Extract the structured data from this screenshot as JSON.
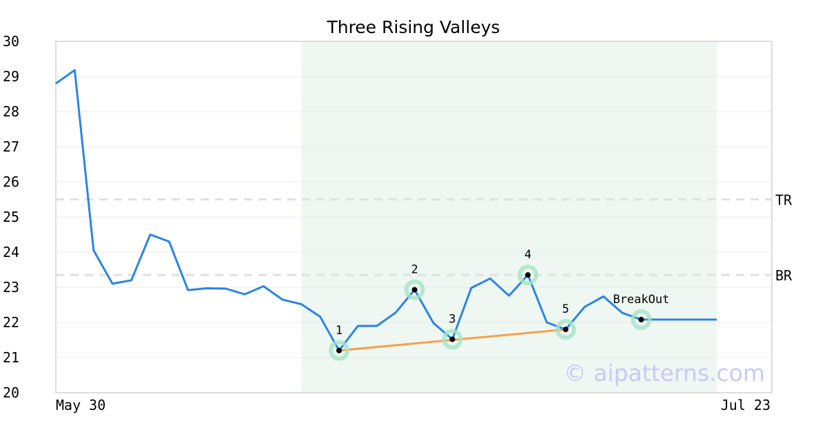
{
  "chart_data": {
    "type": "line",
    "title": "Three Rising Valleys",
    "x_tick_labels": [
      "May 30",
      "Jul 23"
    ],
    "ylim": [
      20,
      30
    ],
    "y_ticks": [
      20,
      21,
      22,
      23,
      24,
      25,
      26,
      27,
      28,
      29,
      30
    ],
    "grid": "horizontal",
    "series": [
      {
        "color": "#2a84e2",
        "values": [
          28.8,
          29.18,
          24.05,
          23.1,
          23.2,
          24.5,
          24.3,
          22.92,
          22.97,
          22.96,
          22.8,
          23.03,
          22.65,
          22.52,
          22.16,
          21.2,
          21.9,
          21.9,
          22.28,
          22.93,
          21.98,
          21.52,
          22.98,
          23.25,
          22.76,
          23.35,
          22.0,
          21.8,
          22.44,
          22.74,
          22.27,
          22.08,
          22.08,
          22.08,
          22.08,
          22.08
        ]
      }
    ],
    "pattern_region": {
      "start_index": 13,
      "end_index": 35,
      "color": "#eef7f2"
    },
    "levels": [
      {
        "label": "TR",
        "value": 25.5
      },
      {
        "label": "BR",
        "value": 23.35
      }
    ],
    "pattern_points": [
      {
        "label": "1",
        "index": 15,
        "value": 21.2
      },
      {
        "label": "2",
        "index": 19,
        "value": 22.93
      },
      {
        "label": "3",
        "index": 21,
        "value": 21.52
      },
      {
        "label": "4",
        "index": 25,
        "value": 23.35
      },
      {
        "label": "5",
        "index": 27,
        "value": 21.8
      },
      {
        "label": "BreakOut",
        "index": 31,
        "value": 22.08
      }
    ],
    "valley_trendline": {
      "from_index": 15,
      "to_index": 27,
      "color": "#f5a04a"
    },
    "watermark": "© aipatterns.com"
  }
}
